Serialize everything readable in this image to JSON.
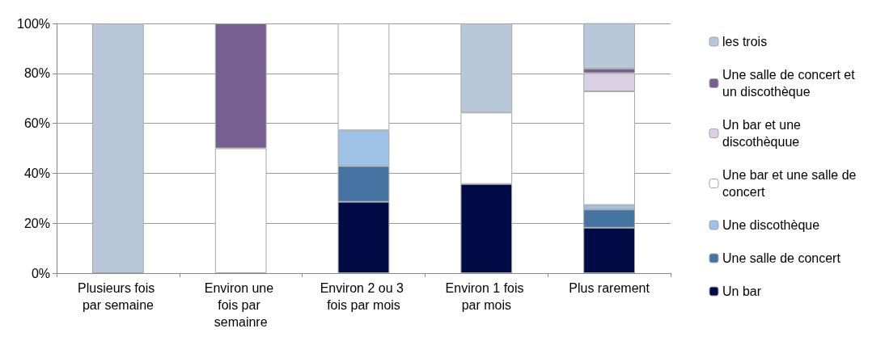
{
  "chart_data": {
    "type": "bar",
    "stacked": true,
    "categories": [
      "Plusieurs fois par semaine",
      "Environ une fois par semainre",
      "Environ 2 ou 3 fois par mois",
      "Environ 1 fois par mois",
      "Plus rarement"
    ],
    "series": [
      {
        "name": "Un bar",
        "color": "#000a44",
        "values": [
          0,
          0,
          28.6,
          35.7,
          18.2
        ]
      },
      {
        "name": "Une salle de concert",
        "color": "#4674a2",
        "values": [
          0,
          0,
          14.3,
          0,
          7.3
        ]
      },
      {
        "name": "Une discothèque",
        "color": "#9fc1e6",
        "values": [
          0,
          0,
          14.3,
          0,
          1.8
        ]
      },
      {
        "name": "Une bar et une salle de concert",
        "color": "#ffffff",
        "values": [
          0,
          50,
          42.8,
          28.6,
          45.5
        ]
      },
      {
        "name": "Un bar et une discothèquue",
        "color": "#d9d0e3",
        "values": [
          0,
          0,
          0,
          0,
          7.3
        ]
      },
      {
        "name": "Une salle de concert et un discothèque",
        "color": "#77608f",
        "values": [
          0,
          50,
          0,
          0,
          1.8
        ]
      },
      {
        "name": "les trois",
        "color": "#b9c7db",
        "values": [
          100,
          0,
          0,
          35.7,
          18.2
        ]
      }
    ],
    "ylim": [
      0,
      100
    ],
    "yticks": [
      {
        "value": 0,
        "label": "0%"
      },
      {
        "value": 20,
        "label": "20%"
      },
      {
        "value": 40,
        "label": "40%"
      },
      {
        "value": 60,
        "label": "60%"
      },
      {
        "value": 80,
        "label": "80%"
      },
      {
        "value": 100,
        "label": "100%"
      }
    ],
    "grid": "y",
    "legend": "right"
  }
}
